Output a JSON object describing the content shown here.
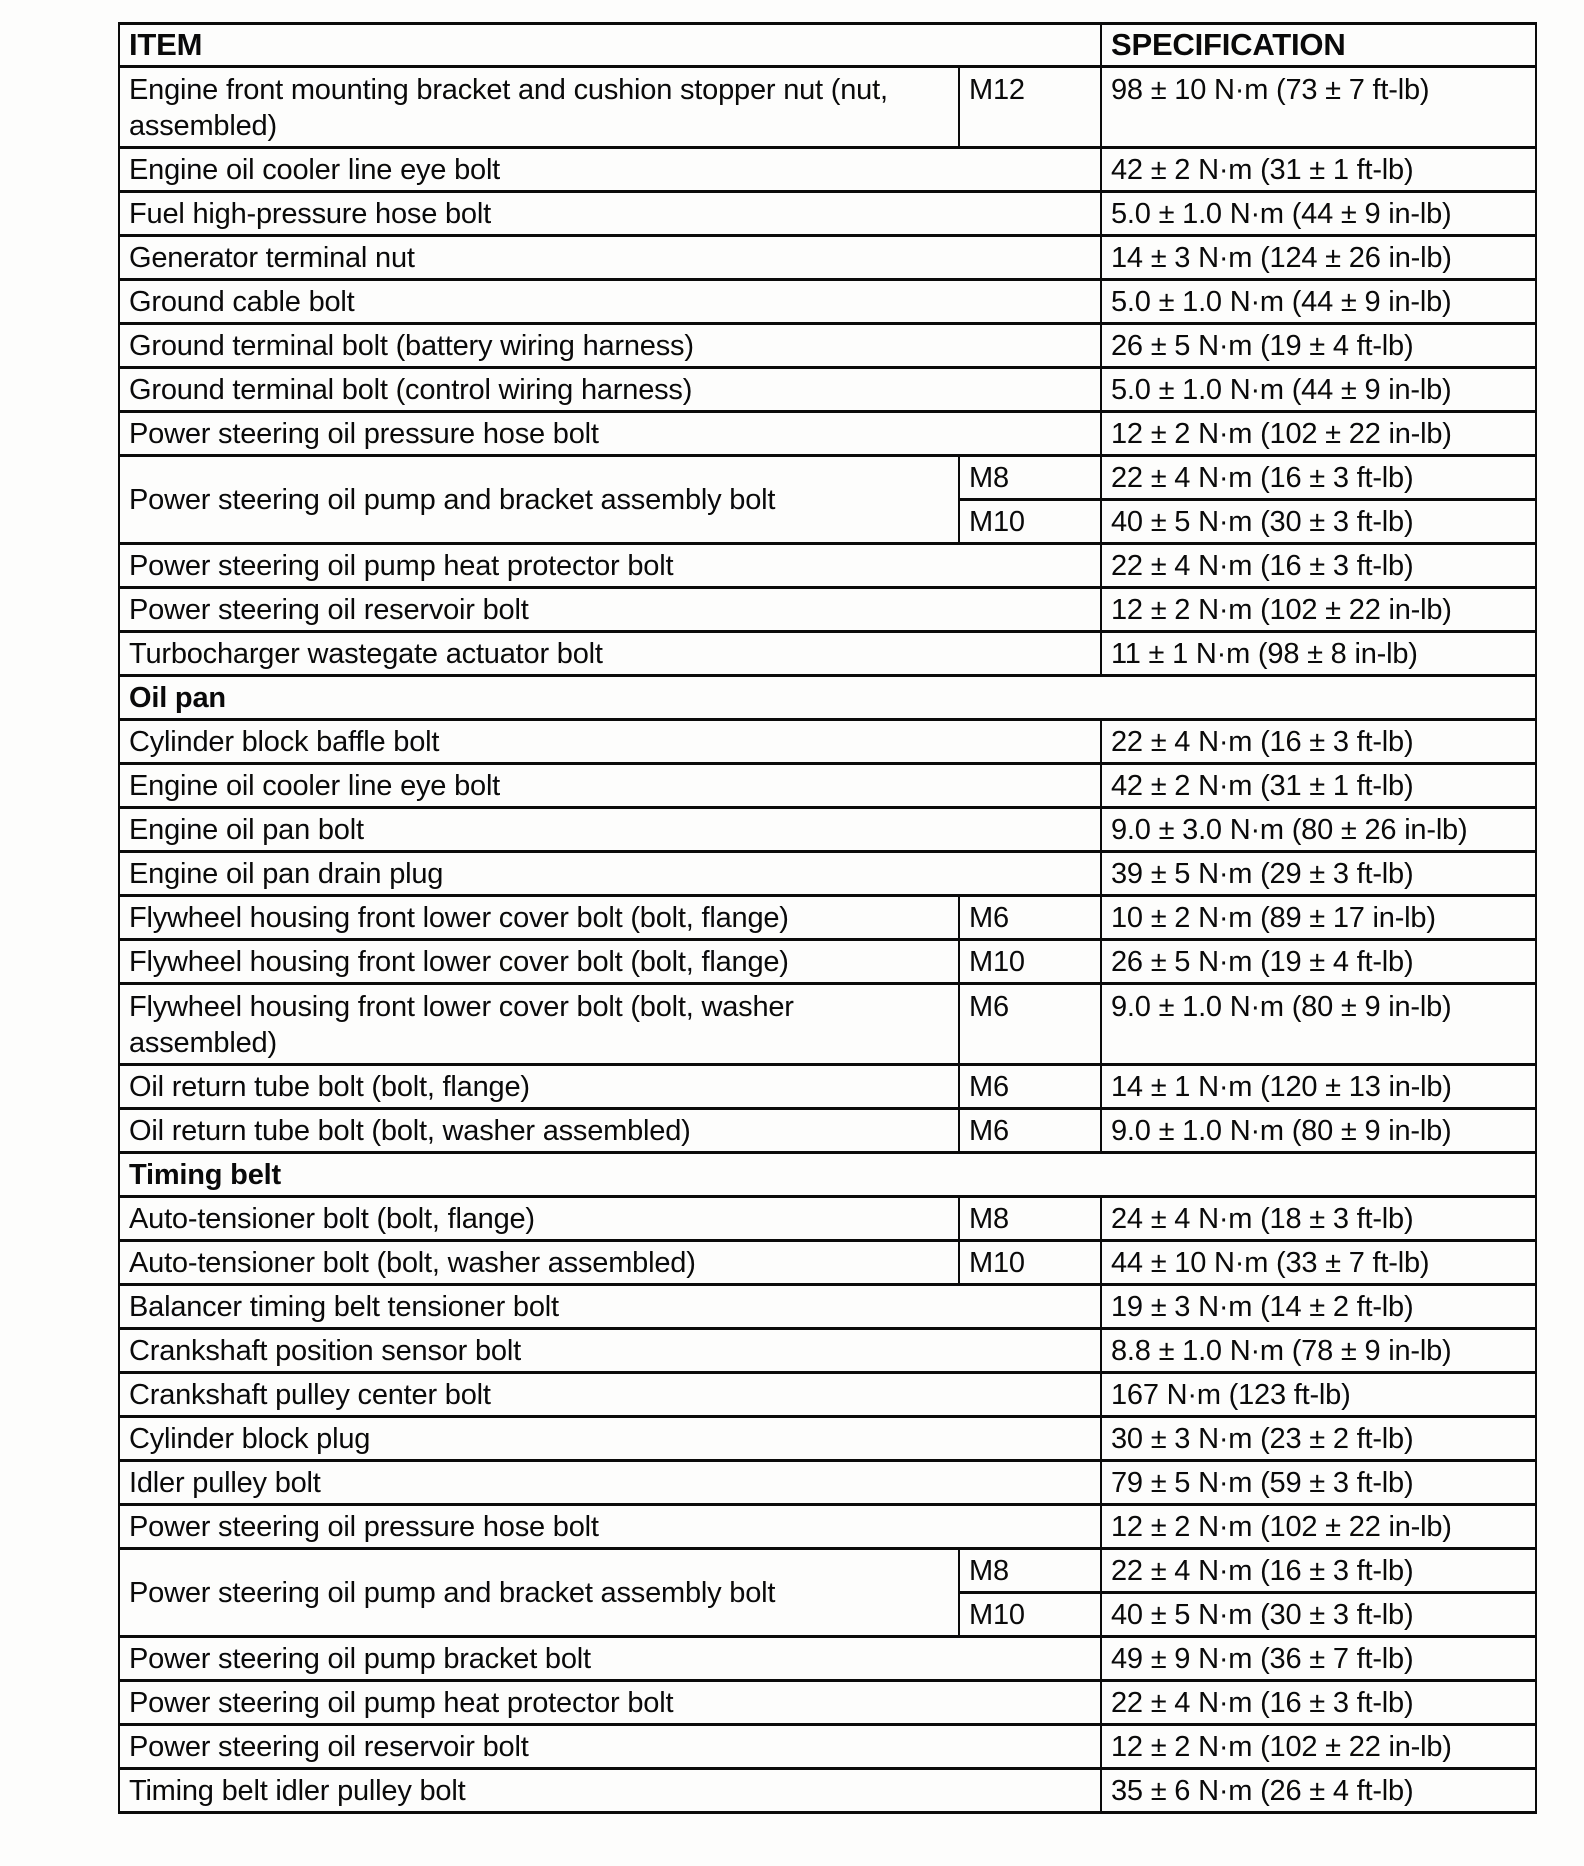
{
  "page": {
    "background_color": "#fdfdfc",
    "text_color": "#0a0a0a",
    "border_color": "#0b0b0b"
  },
  "table": {
    "columns": {
      "item_header": "ITEM",
      "spec_header": "SPECIFICATION"
    },
    "rows": [
      {
        "type": "item",
        "tall": true,
        "item": "Engine front mounting bracket and cushion stopper nut (nut, assembled)",
        "size": "M12",
        "spec": "98 ± 10 N·m (73 ± 7 ft-lb)"
      },
      {
        "type": "item",
        "tall": false,
        "item": "Engine oil cooler line eye bolt",
        "size": "",
        "spec": "42 ± 2 N·m (31 ± 1 ft-lb)"
      },
      {
        "type": "item",
        "tall": false,
        "item": "Fuel high-pressure hose bolt",
        "size": "",
        "spec": "5.0 ± 1.0 N·m (44 ± 9 in-lb)"
      },
      {
        "type": "item",
        "tall": false,
        "item": "Generator terminal nut",
        "size": "",
        "spec": "14 ± 3 N·m (124 ± 26 in-lb)"
      },
      {
        "type": "item",
        "tall": false,
        "item": "Ground cable bolt",
        "size": "",
        "spec": "5.0 ± 1.0 N·m (44 ± 9 in-lb)"
      },
      {
        "type": "item",
        "tall": false,
        "item": "Ground terminal bolt (battery wiring harness)",
        "size": "",
        "spec": "26 ± 5 N·m (19 ± 4 ft-lb)"
      },
      {
        "type": "item",
        "tall": false,
        "item": "Ground terminal bolt (control wiring harness)",
        "size": "",
        "spec": "5.0 ± 1.0 N·m (44 ± 9 in-lb)"
      },
      {
        "type": "item",
        "tall": false,
        "item": "Power steering oil pressure hose bolt",
        "size": "",
        "spec": "12 ± 2 N·m (102 ± 22 in-lb)"
      },
      {
        "type": "multi",
        "item": "Power steering oil pump and bracket assembly bolt",
        "variants": [
          {
            "size": "M8",
            "spec": "22 ± 4 N·m (16 ± 3 ft-lb)"
          },
          {
            "size": "M10",
            "spec": "40 ± 5 N·m (30 ± 3 ft-lb)"
          }
        ]
      },
      {
        "type": "item",
        "tall": false,
        "item": "Power steering oil pump heat protector bolt",
        "size": "",
        "spec": "22 ± 4 N·m (16 ± 3 ft-lb)"
      },
      {
        "type": "item",
        "tall": false,
        "item": "Power steering oil reservoir bolt",
        "size": "",
        "spec": "12 ± 2 N·m (102 ± 22 in-lb)"
      },
      {
        "type": "item",
        "tall": false,
        "item": "Turbocharger wastegate actuator bolt",
        "size": "",
        "spec": "11 ± 1 N·m (98 ± 8 in-lb)"
      },
      {
        "type": "section",
        "label": "Oil pan"
      },
      {
        "type": "item",
        "tall": false,
        "item": "Cylinder block baffle bolt",
        "size": "",
        "spec": "22 ± 4 N·m (16 ± 3 ft-lb)"
      },
      {
        "type": "item",
        "tall": false,
        "item": "Engine oil cooler line eye bolt",
        "size": "",
        "spec": "42 ± 2 N·m (31 ± 1 ft-lb)"
      },
      {
        "type": "item",
        "tall": false,
        "item": "Engine oil pan bolt",
        "size": "",
        "spec": "9.0 ± 3.0 N·m (80 ± 26 in-lb)"
      },
      {
        "type": "item",
        "tall": false,
        "item": "Engine oil pan drain plug",
        "size": "",
        "spec": "39 ± 5 N·m (29 ± 3 ft-lb)"
      },
      {
        "type": "item",
        "tall": false,
        "item": "Flywheel housing front lower cover bolt (bolt, flange)",
        "size": "M6",
        "spec": "10 ± 2 N·m (89 ± 17 in-lb)"
      },
      {
        "type": "item",
        "tall": false,
        "item": "Flywheel housing front lower cover bolt (bolt, flange)",
        "size": "M10",
        "spec": "26 ± 5 N·m (19 ± 4 ft-lb)"
      },
      {
        "type": "item",
        "tall": true,
        "item": "Flywheel housing front lower cover bolt (bolt, washer assembled)",
        "size": "M6",
        "spec": "9.0 ± 1.0 N·m (80 ± 9 in-lb)"
      },
      {
        "type": "item",
        "tall": false,
        "item": "Oil return tube bolt (bolt, flange)",
        "size": "M6",
        "spec": "14 ± 1 N·m (120 ± 13 in-lb)"
      },
      {
        "type": "item",
        "tall": false,
        "item": "Oil return tube bolt (bolt, washer assembled)",
        "size": "M6",
        "spec": "9.0 ± 1.0 N·m (80 ± 9 in-lb)"
      },
      {
        "type": "section",
        "label": "Timing belt"
      },
      {
        "type": "item",
        "tall": false,
        "item": "Auto-tensioner bolt (bolt, flange)",
        "size": "M8",
        "spec": "24 ± 4 N·m (18 ± 3 ft-lb)"
      },
      {
        "type": "item",
        "tall": false,
        "item": "Auto-tensioner bolt (bolt, washer assembled)",
        "size": "M10",
        "spec": "44 ± 10 N·m (33 ± 7 ft-lb)"
      },
      {
        "type": "item",
        "tall": false,
        "item": "Balancer timing belt tensioner bolt",
        "size": "",
        "spec": "19 ± 3 N·m (14 ± 2 ft-lb)"
      },
      {
        "type": "item",
        "tall": false,
        "item": "Crankshaft position sensor bolt",
        "size": "",
        "spec": "8.8 ± 1.0 N·m (78 ± 9 in-lb)"
      },
      {
        "type": "item",
        "tall": false,
        "item": "Crankshaft pulley center bolt",
        "size": "",
        "spec": "167 N·m (123 ft-lb)"
      },
      {
        "type": "item",
        "tall": false,
        "item": "Cylinder block plug",
        "size": "",
        "spec": "30 ± 3 N·m (23 ± 2 ft-lb)"
      },
      {
        "type": "item",
        "tall": false,
        "item": "Idler pulley bolt",
        "size": "",
        "spec": "79 ± 5 N·m (59 ± 3 ft-lb)"
      },
      {
        "type": "item",
        "tall": false,
        "item": "Power steering oil pressure hose bolt",
        "size": "",
        "spec": "12 ± 2 N·m (102 ± 22 in-lb)"
      },
      {
        "type": "multi",
        "item": "Power steering oil pump and bracket assembly bolt",
        "variants": [
          {
            "size": "M8",
            "spec": "22 ± 4 N·m (16 ± 3 ft-lb)"
          },
          {
            "size": "M10",
            "spec": "40 ± 5 N·m (30 ± 3 ft-lb)"
          }
        ]
      },
      {
        "type": "item",
        "tall": false,
        "item": "Power steering oil pump bracket bolt",
        "size": "",
        "spec": "49 ± 9 N·m (36 ± 7 ft-lb)"
      },
      {
        "type": "item",
        "tall": false,
        "item": "Power steering oil pump heat protector bolt",
        "size": "",
        "spec": "22 ± 4 N·m (16 ± 3 ft-lb)"
      },
      {
        "type": "item",
        "tall": false,
        "item": "Power steering oil reservoir bolt",
        "size": "",
        "spec": "12 ± 2 N·m (102 ± 22 in-lb)"
      },
      {
        "type": "item",
        "tall": false,
        "item": "Timing belt idler pulley bolt",
        "size": "",
        "spec": "35 ± 6 N·m (26 ± 4 ft-lb)"
      }
    ]
  }
}
